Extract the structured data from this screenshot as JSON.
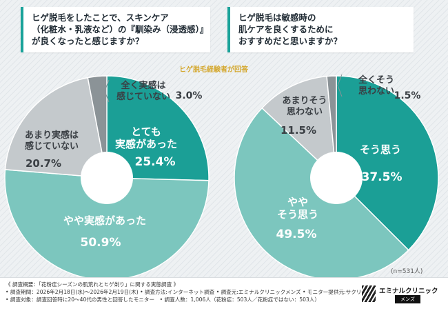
{
  "chart_data": [
    {
      "type": "pie",
      "title": "ヒゲ脱毛をしたことで、スキンケア（化粧水・乳液など）の『馴染み（浸透感）』が良くなったと感じますか？",
      "title_lines": [
        "ヒゲ脱毛をしたことで、スキンケア",
        "（化粧水・乳液など）の『馴染み（浸透感）』",
        "が良くなったと感じますか？"
      ],
      "slices": [
        {
          "label": "とても実感があった",
          "label_lines": [
            "とても",
            "実感があった"
          ],
          "value": 25.4,
          "value_text": "25.4%",
          "color": "#1b9f96"
        },
        {
          "label": "やや実感があった",
          "label_lines": [
            "やや実感があった"
          ],
          "value": 50.9,
          "value_text": "50.9%",
          "color": "#7cc6be"
        },
        {
          "label": "あまり実感は感じていない",
          "label_lines": [
            "あまり実感は",
            "感じていない"
          ],
          "value": 20.7,
          "value_text": "20.7%",
          "color": "#c4c9cc"
        },
        {
          "label": "全く実感は感じていない",
          "label_lines": [
            "全く実感は",
            "感じていない"
          ],
          "value": 3.0,
          "value_text": "3.0%",
          "color": "#8b9397"
        }
      ]
    },
    {
      "type": "pie",
      "title": "ヒゲ脱毛は敏感時の肌ケアを良くするためにおすすめだと思いますか？",
      "title_lines": [
        "ヒゲ脱毛は敏感時の",
        "肌ケアを良くするために",
        "おすすめだと思いますか？"
      ],
      "slices": [
        {
          "label": "そう思う",
          "label_lines": [
            "そう思う"
          ],
          "value": 37.5,
          "value_text": "37.5%",
          "color": "#1b9f96"
        },
        {
          "label": "ややそう思う",
          "label_lines": [
            "やや",
            "そう思う"
          ],
          "value": 49.5,
          "value_text": "49.5%",
          "color": "#7cc6be"
        },
        {
          "label": "あまりそう思わない",
          "label_lines": [
            "あまりそう",
            "思わない"
          ],
          "value": 11.5,
          "value_text": "11.5%",
          "color": "#c4c9cc"
        },
        {
          "label": "全くそう思わない",
          "label_lines": [
            "全くそう",
            "思わない"
          ],
          "value": 1.5,
          "value_text": "1.5%",
          "color": "#8b9397"
        }
      ]
    }
  ],
  "note": "ヒゲ脱毛経験者が回答",
  "sample_size": "(n=531人)",
  "footer": {
    "lines": [
      "《 調査概要：「花粉症シーズンの肌荒れとヒゲ剃り」に関する実態調査 》",
      "• 調査期間：2026年2月18日(水)〜2026年2月19日(木) • 調査方法:インターネット調査 • 調査元:エミナルクリニックメンズ • モニター提供元:サクリサ",
      "• 調査対象：調査回答時に20〜40代の男性と回答したモニター　• 調査人数：1,006人（花粉症：503人／花粉症ではない：503人）"
    ],
    "logo_name": "エミナルクリニック",
    "logo_sub": "メンズ"
  }
}
